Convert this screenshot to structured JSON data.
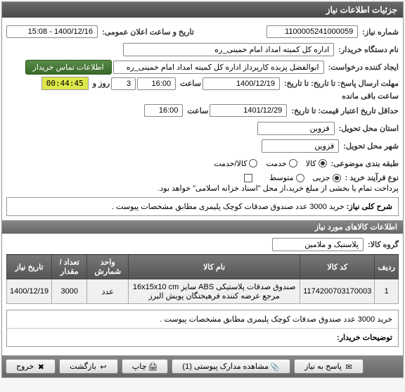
{
  "header": {
    "title": "جزئیات اطلاعات نیاز"
  },
  "fields": {
    "request_no_label": "شماره نیاز:",
    "request_no": "1100005241000059",
    "announce_label": "تاریخ و ساعت اعلان عمومی:",
    "announce_value": "1400/12/16 - 15:08",
    "buyer_label": "نام دستگاه خریدار:",
    "buyer_value": "اداره کل کمیته امداد امام خمینی_ره",
    "creator_label": "ایجاد کننده درخواست:",
    "creator_value": "ابوالفضل پزبده کارپرداز اداره کل کمیته امداد امام خمینی_ره",
    "contact_btn": "اطلاعات تماس خریدار",
    "deadline_label": "مهلت ارسال پاسخ: تا تاریخ: تا تاریخ:",
    "deadline_date": "1400/12/19",
    "time_label": "ساعت",
    "deadline_time": "16:00",
    "days_label": "روز و",
    "days": "3",
    "remaining_label": "ساعت باقی مانده",
    "remaining_time": "00:44:45",
    "validity_label": "حداقل تاریخ اعتبار قیمت: تا تاریخ:",
    "validity_date": "1401/12/29",
    "validity_time": "16:00",
    "province_label": "استان محل تحویل:",
    "province": "قزوین",
    "city_label": "شهر محل تحویل:",
    "city": "قزوین",
    "category_label": "طبقه بندی موضوعی:",
    "cat_goods": "کالا",
    "cat_service": "خدمت",
    "cat_both": "کالا/خدمت",
    "purchase_type_label": "نوع فرآیند خرید :",
    "pt_partial": "جزیی",
    "pt_medium": "متوسط",
    "payment_note": "پرداخت تمام یا بخشی از مبلغ خرید،از محل \"اسناد خزانه اسلامی\" خواهد بود."
  },
  "summary": {
    "label": "شرح کلی نیاز:",
    "text": "خرید 3000 عدد صندوق صدقات کوچک پلیمری مطابق مشخصات پیوست ."
  },
  "items": {
    "header": "اطلاعات کالاهای مورد نیاز",
    "group_label": "گروه کالا:",
    "group_value": "پلاستیک و ملامین",
    "columns": [
      "ردیف",
      "کد کالا",
      "نام کالا",
      "واحد شمارش",
      "تعداد / مقدار",
      "تاریخ نیاز"
    ],
    "rows": [
      [
        "1",
        "1174200703170003",
        "صندوق صدقات پلاستیکی ABS سایز 16x15x10 cm مرجع عرضه کننده فرهیختگان پویش البرز",
        "عدد",
        "3000",
        "1400/12/19"
      ]
    ]
  },
  "buyer_desc": {
    "label": "توضیحات خریدار:",
    "text": "خرید 3000 عدد صندوق صدقات کوچک پلیمری مطابق مشخصات پیوست ."
  },
  "buttons": {
    "reply": "پاسخ به نیاز",
    "attachments": "مشاهده مدارک پیوستی (1)",
    "print": "چاپ",
    "back": "بازگشت",
    "exit": "خروج"
  },
  "colors": {
    "header_bg": "#555555",
    "highlight": "#dfe84a"
  }
}
